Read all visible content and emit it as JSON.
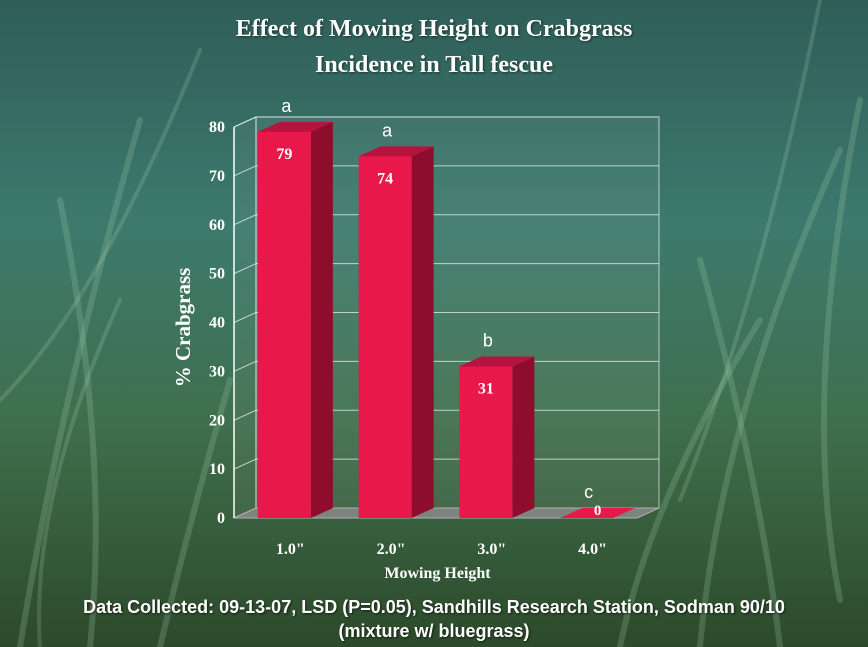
{
  "chart_data": {
    "type": "bar",
    "title_lines": [
      "Effect of Mowing Height on Crabgrass",
      "Incidence in Tall fescue"
    ],
    "xlabel": "Mowing Height",
    "ylabel": "% Crabgrass",
    "categories": [
      "1.0\"",
      "2.0\"",
      "3.0\"",
      "4.0\""
    ],
    "values": [
      79,
      74,
      31,
      0
    ],
    "value_labels": [
      "79",
      "74",
      "31",
      "0"
    ],
    "significance_letters": [
      "a",
      "a",
      "b",
      "c"
    ],
    "ylim": [
      0,
      80
    ],
    "yticks": [
      "0",
      "10",
      "20",
      "30",
      "40",
      "50",
      "60",
      "70",
      "80"
    ],
    "grid": true,
    "legend": "none",
    "bar_color": "#e8194a"
  },
  "footer": {
    "line1": "Data Collected: 09-13-07, LSD (P=0.05), Sandhills Research Station, Sodman 90/10",
    "line2": "(mixture w/ bluegrass)"
  }
}
